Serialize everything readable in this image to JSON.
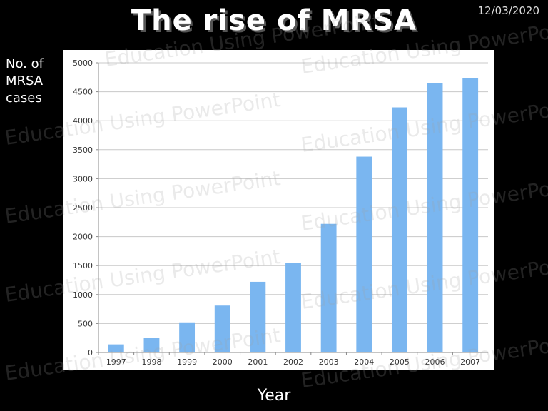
{
  "slide": {
    "title": "The rise of MRSA",
    "date": "12/03/2020",
    "y_axis_label_lines": [
      "No. of",
      "MRSA",
      "cases"
    ],
    "x_axis_label": "Year",
    "watermark": "Education Using PowerPoint"
  },
  "colors": {
    "background": "#000000",
    "bar": "#7ab6f0",
    "plot_background": "#ffffff",
    "gridline": "#c8c8c8"
  },
  "chart_data": {
    "type": "bar",
    "title": "The rise of MRSA",
    "xlabel": "Year",
    "ylabel": "No. of MRSA cases",
    "categories": [
      "1997",
      "1998",
      "1999",
      "2000",
      "2001",
      "2002",
      "2003",
      "2004",
      "2005",
      "2006",
      "2007"
    ],
    "values": [
      140,
      250,
      520,
      810,
      1220,
      1550,
      2220,
      3380,
      4230,
      4650,
      4730
    ],
    "ylim": [
      0,
      5000
    ],
    "yticks": [
      0,
      500,
      1000,
      1500,
      2000,
      2500,
      3000,
      3500,
      4000,
      4500,
      5000
    ],
    "grid": true,
    "legend": "none"
  }
}
